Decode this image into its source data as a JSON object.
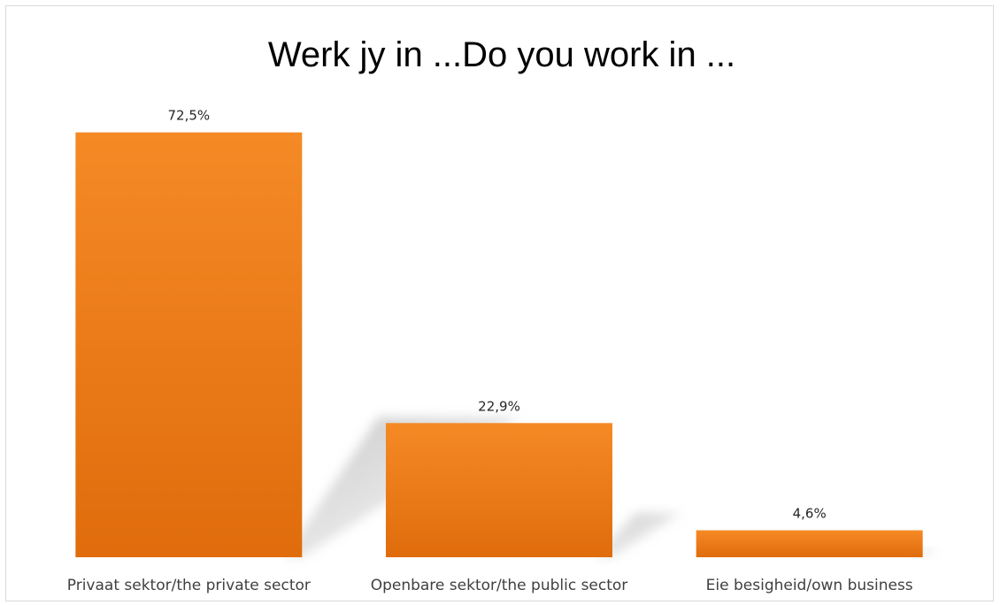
{
  "chart_data": {
    "type": "bar",
    "title": "Werk jy in ...Do you work in ...",
    "categories": [
      "Privaat sektor/the private sector",
      "Openbare sektor/the public sector",
      "Eie besigheid/own business"
    ],
    "values": [
      72.5,
      22.9,
      4.6
    ],
    "data_labels": [
      "72,5%",
      "22,9%",
      "4,6%"
    ],
    "unit": "%",
    "ylim": [
      0,
      80
    ],
    "grid": false,
    "legend": "none",
    "bar_color_top": "#f58a25",
    "bar_color_bottom": "#e06c0c",
    "shadow_color": "#bfbfbf"
  }
}
